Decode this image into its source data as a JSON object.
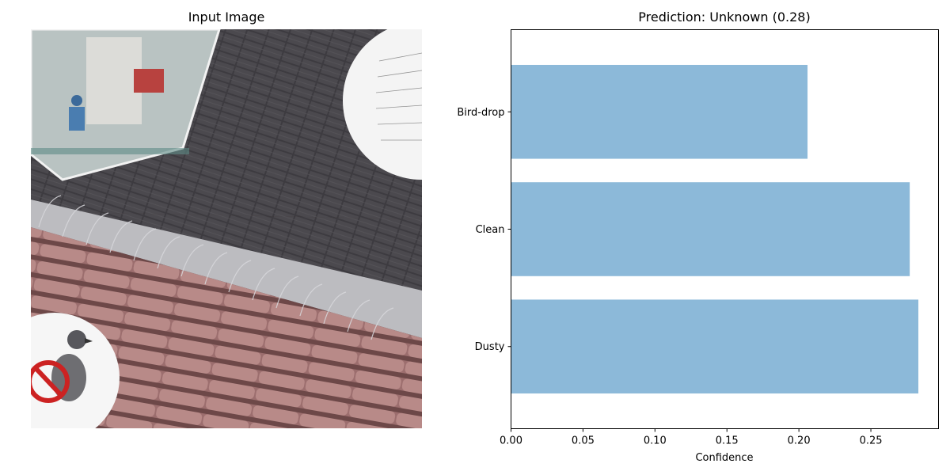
{
  "left_panel": {
    "title": "Input Image"
  },
  "chart_data": {
    "type": "bar",
    "orientation": "horizontal",
    "title": "Prediction: Unknown (0.28)",
    "xlabel": "Confidence",
    "ylabel": "",
    "categories": [
      "Bird-drop",
      "Clean",
      "Dusty"
    ],
    "values": [
      0.206,
      0.277,
      0.283
    ],
    "xlim": [
      0,
      0.297
    ],
    "xticks": [
      "0.00",
      "0.05",
      "0.10",
      "0.15",
      "0.20",
      "0.25"
    ],
    "bar_color": "#8cb9d9",
    "grid": false,
    "legend": "none"
  }
}
